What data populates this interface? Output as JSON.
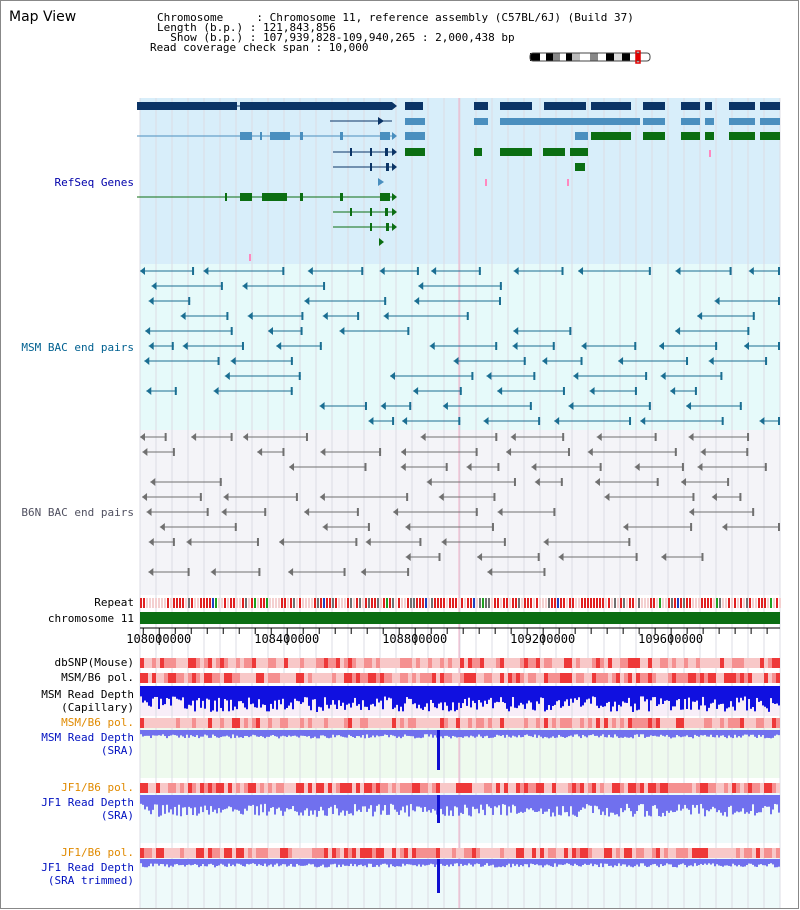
{
  "header": {
    "map_title": "Map View",
    "chromosome_line": "Chromosome     : Chromosome 11, reference assembly (C57BL/6J) (Build 37)",
    "length_line": "Length (b.p.) : 121,843,856",
    "show_line": "  Show (b.p.) : 107,939,828-109,940,265 : 2,000,438 bp",
    "span_line": "Read coverage check span : 10,000"
  },
  "tracks": {
    "refseq": "RefSeq Genes",
    "msm_bac": "MSM BAC end pairs",
    "b6n_bac": "B6N BAC end pairs",
    "repeat": "Repeat",
    "chromosome": "chromosome 11",
    "dbsnp": "dbSNP(Mouse)",
    "msm_b6_pol_1": "MSM/B6 pol.",
    "msm_read_depth_cap_1": "MSM Read Depth",
    "msm_read_depth_cap_2": "(Capillary)",
    "msm_b6_pol_2": "MSM/B6 pol.",
    "msm_read_depth_sra_1": "MSM Read Depth",
    "msm_read_depth_sra_2": "(SRA)",
    "jf1_b6_pol_1": "JF1/B6 pol.",
    "jf1_read_depth_sra_1": "JF1 Read Depth",
    "jf1_read_depth_sra_2": "(SRA)",
    "jf1_b6_pol_2": "JF1/B6 pol.",
    "jf1_read_depth_trim_1": "JF1 Read Depth",
    "jf1_read_depth_trim_2": "(SRA trimmed)"
  },
  "axis": {
    "ticks": [
      {
        "pos": 108000000,
        "label": "108000000"
      },
      {
        "pos": 108400000,
        "label": "108400000"
      },
      {
        "pos": 108800000,
        "label": "108800000"
      },
      {
        "pos": 109200000,
        "label": "109200000"
      },
      {
        "pos": 109600000,
        "label": "109600000"
      }
    ],
    "range_start": 107939828,
    "range_end": 109940265
  },
  "colors": {
    "refseq_bg": "#d8eefa",
    "msm_bg": "#e6fafa",
    "b6n_bg": "#f4f4f8",
    "gene_dark": "#0b3466",
    "gene_mid": "#4a8fbf",
    "gene_green": "#0b6e12",
    "msm_bac": "#1a6e92",
    "b6n_bac": "#707070",
    "chromosome_bar": "#0b6e12",
    "depth_blue": "#1010e0",
    "depth_light": "#7070ee",
    "pol_red": "#ee3030",
    "pol_light": "#f6c8c8"
  }
}
